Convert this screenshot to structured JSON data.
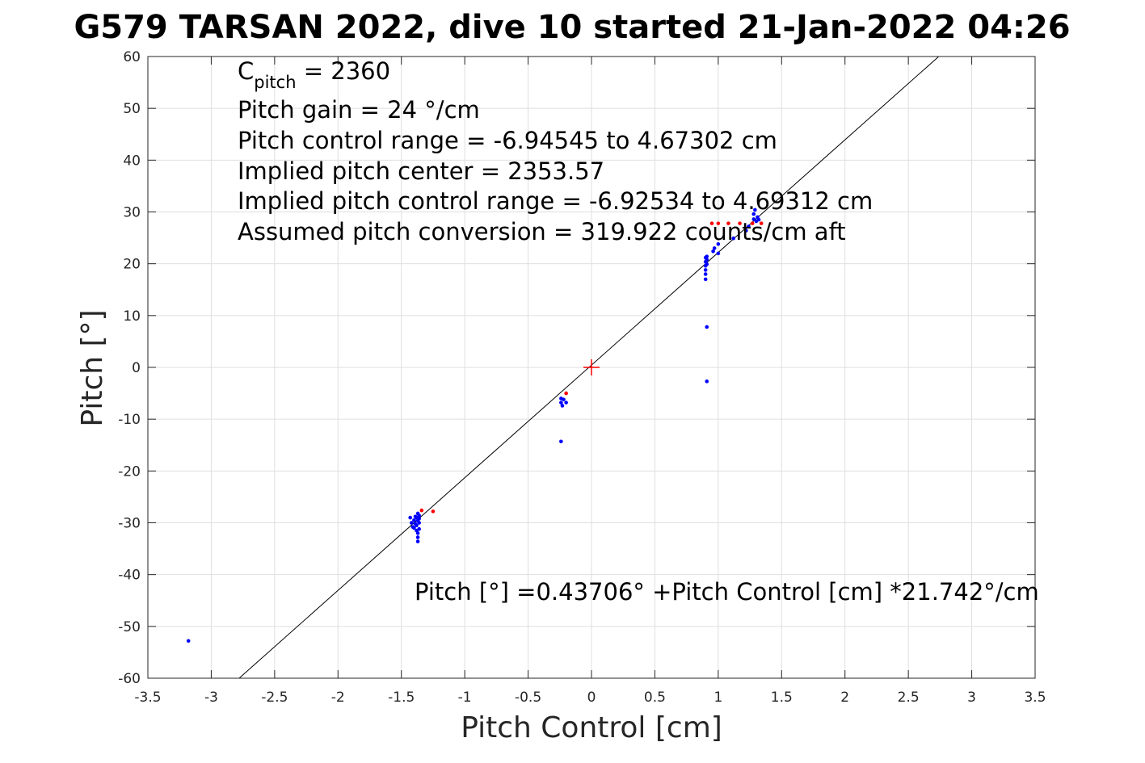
{
  "chart_data": {
    "type": "scatter",
    "title": "G579 TARSAN 2022, dive 10 started 21-Jan-2022 04:26",
    "xlabel": "Pitch Control [cm]",
    "ylabel": "Pitch [°]",
    "xlim": [
      -3.5,
      3.5
    ],
    "ylim": [
      -60,
      60
    ],
    "grid": true,
    "x_ticks": [
      "-3.5",
      "-3",
      "-2.5",
      "-2",
      "-1.5",
      "-1",
      "-0.5",
      "0",
      "0.5",
      "1",
      "1.5",
      "2",
      "2.5",
      "3",
      "3.5"
    ],
    "y_ticks": [
      "-60",
      "-50",
      "-40",
      "-30",
      "-20",
      "-10",
      "0",
      "10",
      "20",
      "30",
      "40",
      "50",
      "60"
    ],
    "annotations": {
      "c_pitch_base": "C",
      "c_pitch_sub": "pitch",
      "c_pitch_value": " = 2360",
      "lines": [
        "Pitch gain = 24 °/cm",
        "Pitch control range = -6.94545 to 4.67302 cm",
        "Implied pitch center = 2353.57",
        "Implied pitch control range = -6.92534 to 4.69312 cm",
        "Assumed pitch conversion = 319.922 counts/cm aft"
      ],
      "fit_equation": "Pitch [°] =0.43706° +Pitch Control [cm] *21.742°/cm"
    },
    "fit_line": {
      "intercept": 0.43706,
      "slope": 21.742,
      "color": "#000000"
    },
    "center_marker": {
      "x": 0,
      "y": 0,
      "color": "#ff0000"
    },
    "series": [
      {
        "color": "#0000ff",
        "points": [
          [
            -3.18,
            -52.8
          ],
          [
            -1.43,
            -29.0
          ],
          [
            -1.42,
            -30.0
          ],
          [
            -1.41,
            -30.8
          ],
          [
            -1.4,
            -29.5
          ],
          [
            -1.4,
            -31.0
          ],
          [
            -1.39,
            -28.8
          ],
          [
            -1.39,
            -30.2
          ],
          [
            -1.38,
            -29.0
          ],
          [
            -1.38,
            -31.5
          ],
          [
            -1.38,
            -30.5
          ],
          [
            -1.37,
            -28.2
          ],
          [
            -1.37,
            -29.6
          ],
          [
            -1.37,
            -32.0
          ],
          [
            -1.37,
            -32.8
          ],
          [
            -1.37,
            -33.6
          ],
          [
            -1.36,
            -30.0
          ],
          [
            -1.36,
            -28.6
          ],
          [
            -1.36,
            -31.2
          ],
          [
            -1.36,
            -29.2
          ],
          [
            -0.24,
            -6.0
          ],
          [
            -0.24,
            -6.8
          ],
          [
            -0.23,
            -7.4
          ],
          [
            -0.22,
            -6.2
          ],
          [
            -0.2,
            -6.8
          ],
          [
            -0.24,
            -14.3
          ],
          [
            0.9,
            21.2
          ],
          [
            0.9,
            20.4
          ],
          [
            0.9,
            19.6
          ],
          [
            0.9,
            18.8
          ],
          [
            0.9,
            18.0
          ],
          [
            0.9,
            17.0
          ],
          [
            0.91,
            20.8
          ],
          [
            0.91,
            19.9
          ],
          [
            0.91,
            21.4
          ],
          [
            0.91,
            7.8
          ],
          [
            0.91,
            -2.7
          ],
          [
            0.96,
            22.4
          ],
          [
            0.97,
            23.0
          ],
          [
            1.0,
            22.0
          ],
          [
            1.0,
            23.8
          ],
          [
            1.12,
            24.9
          ],
          [
            1.22,
            26.4
          ],
          [
            1.24,
            27.2
          ],
          [
            1.28,
            28.6
          ],
          [
            1.28,
            29.6
          ],
          [
            1.29,
            30.4
          ],
          [
            1.3,
            28.2
          ],
          [
            1.31,
            29.0
          ],
          [
            1.32,
            28.5
          ]
        ]
      },
      {
        "color": "#ff0000",
        "points": [
          [
            -1.34,
            -27.6
          ],
          [
            -1.25,
            -27.8
          ],
          [
            -0.2,
            -5.0
          ],
          [
            0.95,
            27.8
          ],
          [
            1.0,
            27.8
          ],
          [
            1.08,
            27.8
          ],
          [
            1.17,
            27.8
          ],
          [
            1.27,
            27.8
          ],
          [
            1.34,
            27.8
          ]
        ]
      }
    ]
  }
}
